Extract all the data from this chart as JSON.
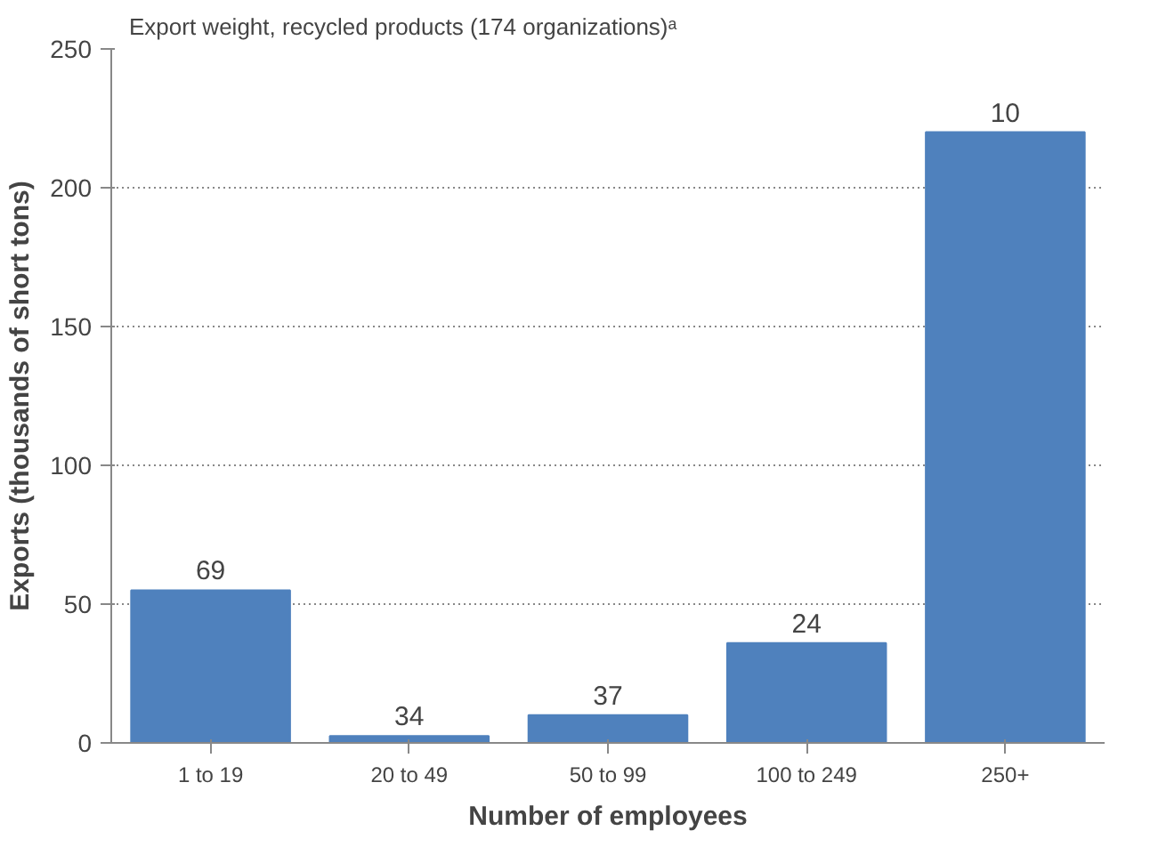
{
  "chart_data": {
    "type": "bar",
    "title": "Export weight, recycled products (174 organizations)ᵃ",
    "xlabel": "Number of employees",
    "ylabel": "Exports (thousands of short tons)",
    "categories": [
      "1 to 19",
      "20 to 49",
      "50 to 99",
      "100 to 249",
      "250+"
    ],
    "values": [
      55,
      2.5,
      10,
      36,
      220
    ],
    "annotations": [
      {
        "text": "69",
        "x": "1 to 19",
        "y": 55
      },
      {
        "text": "34",
        "x": "20 to 49",
        "y": 2.5
      },
      {
        "text": "37",
        "x": "50 to 99",
        "y": 10
      },
      {
        "text": "24",
        "x": "100 to 249",
        "y": 36
      },
      {
        "text": "10",
        "x": "250+",
        "y": 220
      }
    ],
    "color": "#4f81bd",
    "ylim": [
      0,
      250
    ],
    "yticks": [
      0,
      50,
      100,
      150,
      200,
      250
    ],
    "grid": "y"
  }
}
